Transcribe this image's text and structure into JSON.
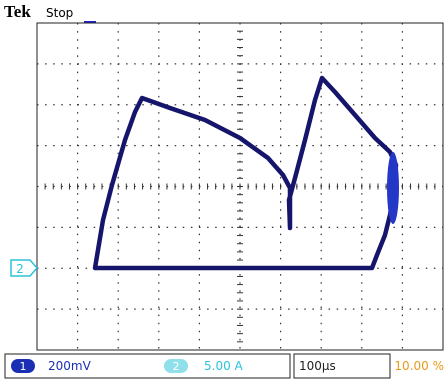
{
  "header": {
    "brand": "Tek",
    "status": "Stop"
  },
  "marker": "2",
  "status_bar": {
    "ch1_label": "1",
    "ch1_scale": "200mV",
    "ch2_label": "2",
    "ch2_scale": "5.00 A",
    "timebase": "100µs",
    "trigger": "10.00 %"
  }
}
